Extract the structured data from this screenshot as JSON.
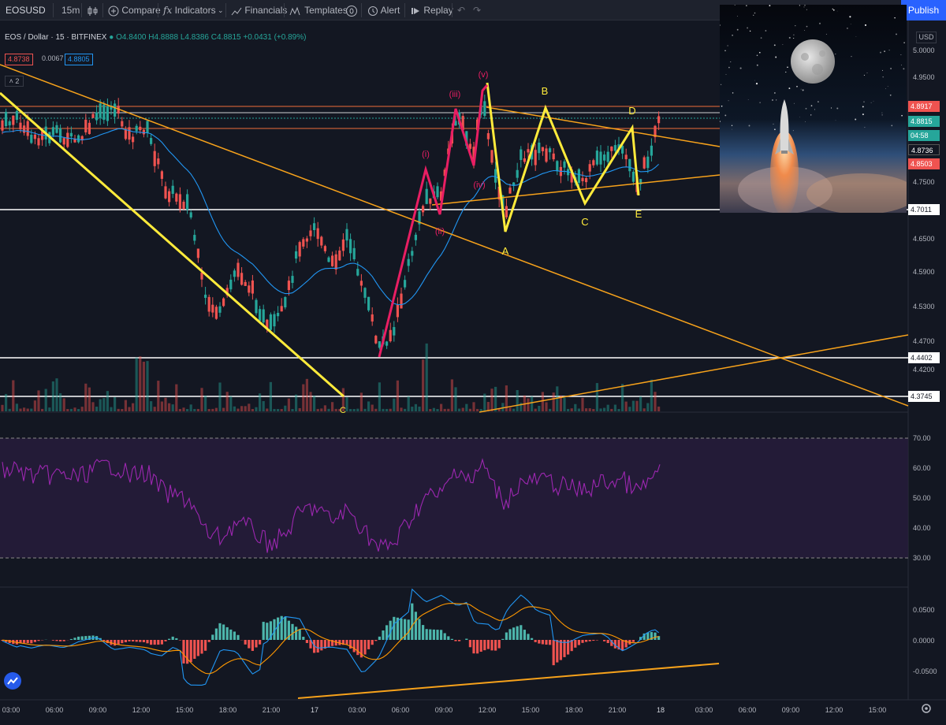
{
  "toolbar": {
    "symbol": "EOSUSD",
    "interval": "15m",
    "compare": "Compare",
    "indicators": "Indicators",
    "financials": "Financials",
    "templates": "Templates",
    "alert": "Alert",
    "replay": "Replay",
    "publish": "Publish"
  },
  "legend": {
    "symbol": "EOS / Dollar · 15 · BITFINEX",
    "open": "O4.8400",
    "high": "H4.8888",
    "low": "L4.8386",
    "close": "C4.8815",
    "change": "+0.0431 (+0.89%)",
    "bid": "4.8738",
    "spread": "0.0067",
    "ask": "4.8805",
    "collapse": "2"
  },
  "currency": "USD",
  "price_axis": [
    "5.0000",
    "4.9500",
    "4.8917",
    "4.8815",
    "4.8736",
    "4.8503",
    "4.7500",
    "4.7011",
    "4.6500",
    "4.5900",
    "4.5300",
    "4.4700",
    "4.4402",
    "4.4200",
    "4.3745"
  ],
  "price_tags": {
    "p4_8917": "4.8917",
    "current": "4.8815",
    "countdown": "04:58",
    "p4_8736": "4.8736",
    "p4_8503": "4.8503",
    "p4_7011": "4.7011",
    "p4_4402": "4.4402",
    "p4_3745": "4.3745"
  },
  "rsi_axis": [
    "70.00",
    "60.00",
    "50.00",
    "40.00",
    "30.00"
  ],
  "macd_axis": [
    "0.0500",
    "0.0000",
    "-0.0500"
  ],
  "time_axis": [
    "03:00",
    "06:00",
    "09:00",
    "12:00",
    "15:00",
    "18:00",
    "21:00",
    "17",
    "03:00",
    "06:00",
    "09:00",
    "12:00",
    "15:00",
    "18:00",
    "21:00",
    "18",
    "03:00",
    "06:00",
    "09:00",
    "12:00",
    "15:00"
  ],
  "wave_labels": {
    "w1": "(i)",
    "w2": "(ii)",
    "w3": "(iii)",
    "w4": "(iv)",
    "w5": "(v)",
    "a": "A",
    "b": "B",
    "c": "C",
    "d": "D",
    "e": "E",
    "c_low": "C"
  },
  "colors": {
    "bg": "#131722",
    "up": "#26a69a",
    "down": "#ef5350",
    "ema": "#2196f3",
    "trend": "#f7a21b",
    "wave": "#ffeb3b",
    "impulse": "#e91e63",
    "rsi": "#9c27b0"
  },
  "icons": [
    "candles-icon",
    "add-icon",
    "fx-icon",
    "financials-icon",
    "templates-icon",
    "alert-icon",
    "replay-icon",
    "undo-icon",
    "redo-icon",
    "tradingview-logo-icon",
    "settings-icon"
  ]
}
